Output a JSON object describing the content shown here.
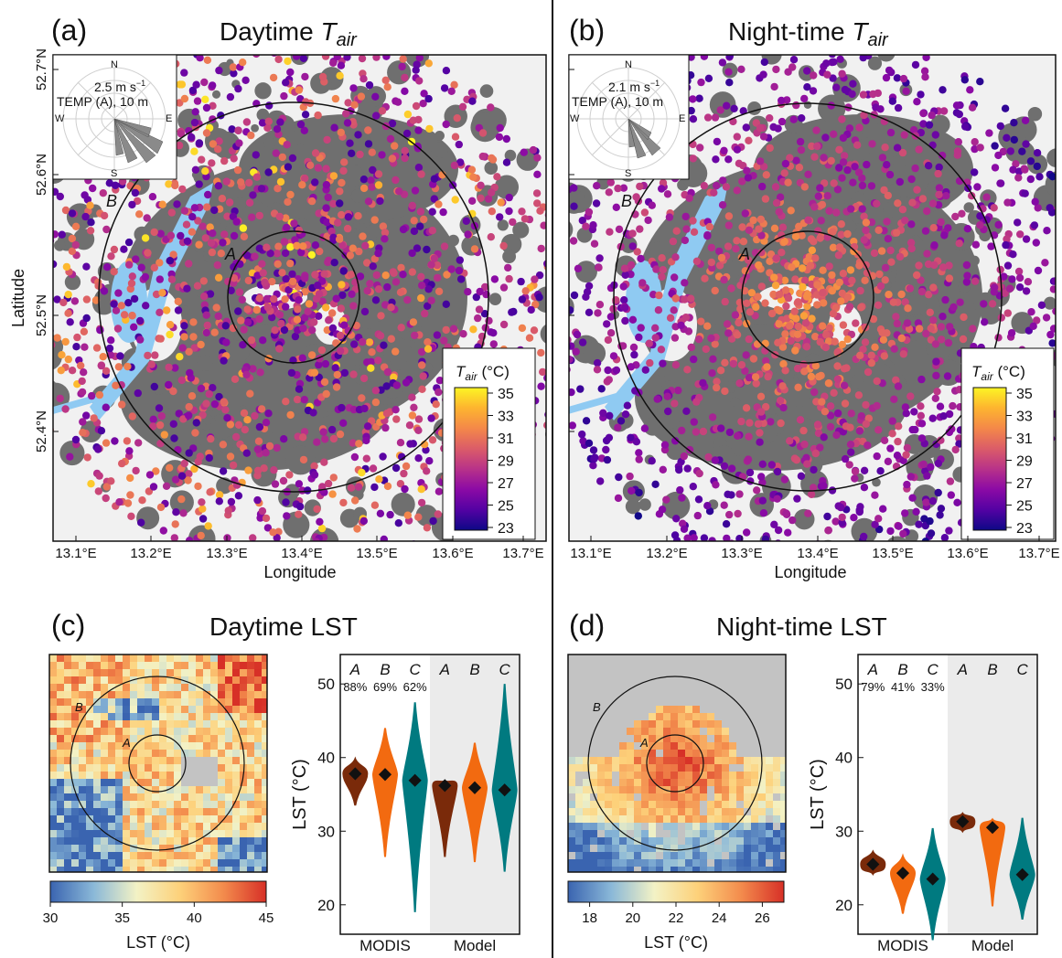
{
  "panels": {
    "a": {
      "letter": "(a)",
      "title_main": "Daytime ",
      "title_var": "T",
      "title_sub": "air"
    },
    "b": {
      "letter": "(b)",
      "title_main": "Night-time ",
      "title_var": "T",
      "title_sub": "air"
    },
    "c": {
      "letter": "(c)",
      "title": "Daytime LST"
    },
    "d": {
      "letter": "(d)",
      "title": "Night-time LST"
    }
  },
  "maps": {
    "lat_ticks": [
      "52.7°N",
      "52.6°N",
      "52.5°N",
      "52.4°N"
    ],
    "lon_ticks": [
      "13.1°E",
      "13.2°E",
      "13.3°E",
      "13.4°E",
      "13.5°E",
      "13.6°E",
      "13.7°E"
    ],
    "xlabel": "Longitude",
    "ylabel": "Latitude",
    "ring_inner": "A",
    "ring_outer": "B",
    "windrose_a": {
      "speed": "2.5 m s",
      "speed_exp": "−1",
      "station": "TEMP (A), 10 m"
    },
    "windrose_b": {
      "speed": "2.1 m s",
      "speed_exp": "−1",
      "station": "TEMP (A), 10 m"
    },
    "compass": {
      "n": "N",
      "e": "E",
      "s": "S",
      "w": "W"
    },
    "colorbar": {
      "label_var": "T",
      "label_sub": "air",
      "label_unit": " (°C)",
      "ticks": [
        "35",
        "33",
        "31",
        "29",
        "27",
        "25",
        "23"
      ],
      "colors": [
        "#fcf524",
        "#fdb42f",
        "#f48849",
        "#db5c68",
        "#b83289",
        "#8b0aa5",
        "#5302a3",
        "#0d0887"
      ]
    }
  },
  "lst_maps": {
    "ring_inner": "A",
    "ring_outer": "B",
    "day_colorbar": {
      "ticks": [
        "30",
        "35",
        "40",
        "45"
      ],
      "label": "LST (°C)",
      "colors": [
        "#3a64b0",
        "#8ab8d8",
        "#f3f2c5",
        "#fdd17a",
        "#f38c4d",
        "#d73027"
      ]
    },
    "night_colorbar": {
      "ticks": [
        "18",
        "20",
        "22",
        "24",
        "26"
      ],
      "label": "LST (°C)",
      "colors": [
        "#3a64b0",
        "#8ab8d8",
        "#f3f2c5",
        "#fdd17a",
        "#f38c4d",
        "#d73027"
      ]
    }
  },
  "chart_data": [
    {
      "type": "violin",
      "panel": "c",
      "ylabel": "LST (°C)",
      "ylim": [
        16,
        54
      ],
      "yticks": [
        20,
        30,
        40,
        50
      ],
      "groups": [
        "MODIS",
        "Model"
      ],
      "categories": [
        "A",
        "B",
        "C",
        "A",
        "B",
        "C"
      ],
      "percent_labels": [
        "88%",
        "69%",
        "62%"
      ],
      "means": [
        37.8,
        37.7,
        36.9,
        36.2,
        35.9,
        35.6
      ],
      "ranges": [
        [
          33.5,
          39.8
        ],
        [
          26.5,
          44
        ],
        [
          19,
          47.5
        ],
        [
          26.5,
          36.8
        ],
        [
          25.8,
          42
        ],
        [
          24.5,
          50
        ]
      ],
      "colors": [
        "#7a2a0a",
        "#f26a10",
        "#007a80"
      ]
    },
    {
      "type": "violin",
      "panel": "d",
      "ylabel": "LST (°C)",
      "ylim": [
        16,
        54
      ],
      "yticks": [
        20,
        30,
        40,
        50
      ],
      "groups": [
        "MODIS",
        "Model"
      ],
      "categories": [
        "A",
        "B",
        "C",
        "A",
        "B",
        "C"
      ],
      "percent_labels": [
        "79%",
        "41%",
        "33%"
      ],
      "means": [
        25.5,
        24.3,
        23.5,
        31.3,
        30.5,
        24.1
      ],
      "ranges": [
        [
          24.2,
          27.2
        ],
        [
          18.8,
          26.6
        ],
        [
          15.2,
          30.4
        ],
        [
          30.0,
          32.4
        ],
        [
          19.8,
          31.6
        ],
        [
          18.0,
          31.8
        ]
      ],
      "colors": [
        "#7a2a0a",
        "#f26a10",
        "#007a80"
      ]
    }
  ]
}
